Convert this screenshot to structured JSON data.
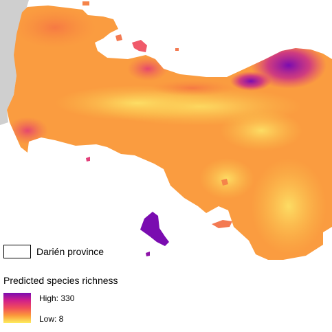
{
  "legend": {
    "boundary_label": "Darién province",
    "title": "Predicted species richness",
    "high_label": "High: 330",
    "low_label": "Low: 8",
    "ramp_colors": [
      "#7a0cb0",
      "#d11f8a",
      "#f14d5a",
      "#fb9a3a",
      "#fdee5e"
    ]
  },
  "map_colors": {
    "land_outside": "#cfcfcf",
    "high": "#7a0cb0",
    "mid_high": "#e0307a",
    "mid": "#fa8c3c",
    "low": "#fdd85a"
  }
}
